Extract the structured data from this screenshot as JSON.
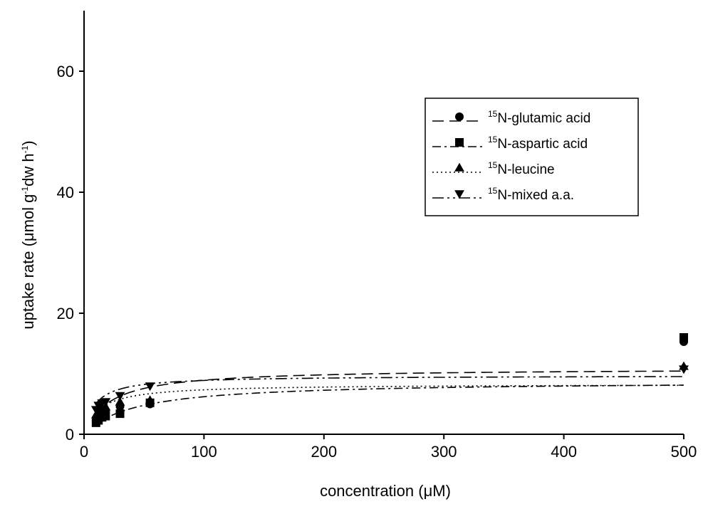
{
  "chart_data": {
    "type": "scatter",
    "xlabel": "concentration (μM)",
    "ylabel": "uptake rate (μmol g-1dw h-1)",
    "ylabel_parts": {
      "a": "uptake rate (",
      "mu": "μ",
      "b": "mol g",
      "sup1": "-1",
      "c": "dw h",
      "sup2": "-1",
      "d": ")"
    },
    "xlabel_parts": {
      "a": "concentration (",
      "mu": "μ",
      "b": "M)"
    },
    "xlim": [
      0,
      500
    ],
    "ylim": [
      0,
      70
    ],
    "x_ticks": [
      0,
      100,
      200,
      300,
      400,
      500
    ],
    "y_ticks": [
      0,
      20,
      40,
      60
    ],
    "grid": false,
    "legend_position": "right",
    "series": [
      {
        "name": "15N-glutamic acid",
        "name_sup": "15",
        "name_rest": "N-glutamic acid",
        "marker": "circle",
        "line_style": "long-dash",
        "points": {
          "x": [
            10,
            12,
            15,
            18,
            30,
            55,
            500
          ],
          "y": [
            2.2,
            2.8,
            3.3,
            3.8,
            4.6,
            5.0,
            15.3
          ]
        },
        "fit": {
          "vmax": 10.9,
          "km": 22
        }
      },
      {
        "name": "15N-aspartic acid",
        "name_sup": "15",
        "name_rest": "N-aspartic acid",
        "marker": "square",
        "line_style": "dash-dot",
        "points": {
          "x": [
            10,
            12,
            15,
            18,
            30,
            55,
            500
          ],
          "y": [
            1.9,
            2.3,
            2.8,
            3.0,
            3.4,
            5.2,
            16.0
          ]
        },
        "fit": {
          "vmax": 8.8,
          "km": 42
        }
      },
      {
        "name": "15N-leucine",
        "name_sup": "15",
        "name_rest": "N-leucine",
        "marker": "triangle-up",
        "line_style": "dotted",
        "points": {
          "x": [
            10,
            12,
            15,
            18,
            30,
            55,
            500
          ],
          "y": [
            3.2,
            3.6,
            4.2,
            4.5,
            5.3,
            5.6,
            11.2
          ]
        },
        "fit": {
          "vmax": 8.3,
          "km": 13
        }
      },
      {
        "name": "15N-mixed a.a.",
        "name_sup": "15",
        "name_rest": "N-mixed a.a.",
        "marker": "triangle-down",
        "line_style": "long-dash-dot",
        "points": {
          "x": [
            10,
            12,
            15,
            18,
            30,
            55,
            500
          ],
          "y": [
            4.1,
            4.8,
            5.2,
            5.4,
            6.4,
            8.0,
            10.8
          ]
        },
        "fit": {
          "vmax": 9.7,
          "km": 9
        }
      }
    ]
  }
}
